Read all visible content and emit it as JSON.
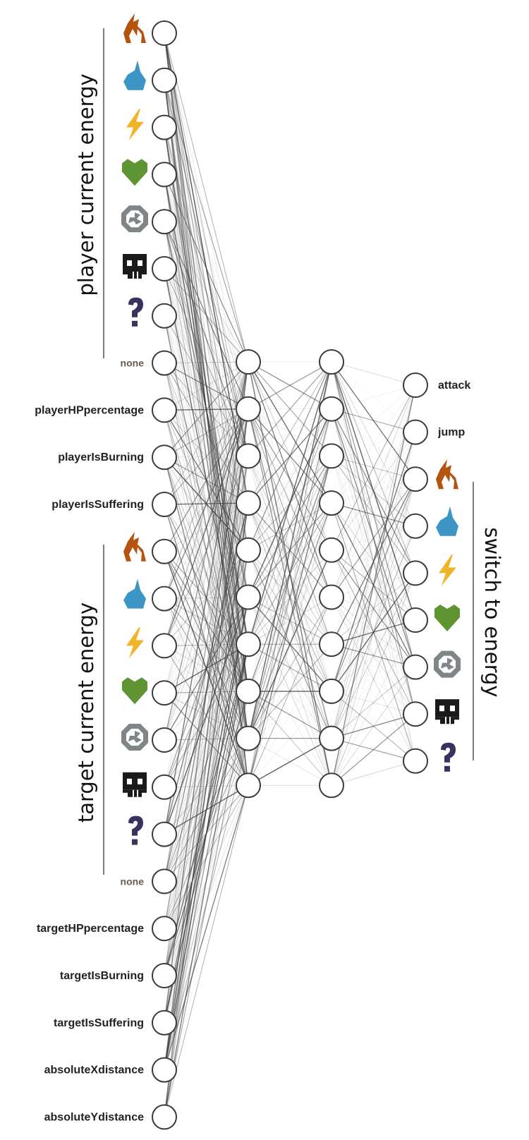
{
  "groups": {
    "player_energy": "player current energy",
    "target_energy": "target current energy",
    "switch_energy": "switch to energy"
  },
  "input_nodes": [
    {
      "kind": "icon",
      "icon": "fire-icon",
      "color": "#b5540f"
    },
    {
      "kind": "icon",
      "icon": "water-drop-icon",
      "color": "#3d95c6"
    },
    {
      "kind": "icon",
      "icon": "lightning-icon",
      "color": "#f0b429"
    },
    {
      "kind": "icon",
      "icon": "heart-icon",
      "color": "#5e9432"
    },
    {
      "kind": "icon",
      "icon": "rock-icon",
      "color": "#808588"
    },
    {
      "kind": "icon",
      "icon": "skull-icon",
      "color": "#1a1a1a"
    },
    {
      "kind": "icon",
      "icon": "question-icon",
      "color": "#3b3160"
    },
    {
      "kind": "none",
      "label": "none"
    },
    {
      "kind": "text",
      "label": "playerHPpercentage"
    },
    {
      "kind": "text",
      "label": "playerIsBurning"
    },
    {
      "kind": "text",
      "label": "playerIsSuffering"
    },
    {
      "kind": "icon",
      "icon": "fire-icon",
      "color": "#b5540f"
    },
    {
      "kind": "icon",
      "icon": "water-drop-icon",
      "color": "#3d95c6"
    },
    {
      "kind": "icon",
      "icon": "lightning-icon",
      "color": "#f0b429"
    },
    {
      "kind": "icon",
      "icon": "heart-icon",
      "color": "#5e9432"
    },
    {
      "kind": "icon",
      "icon": "rock-icon",
      "color": "#808588"
    },
    {
      "kind": "icon",
      "icon": "skull-icon",
      "color": "#1a1a1a"
    },
    {
      "kind": "icon",
      "icon": "question-icon",
      "color": "#3b3160"
    },
    {
      "kind": "none",
      "label": "none"
    },
    {
      "kind": "text",
      "label": "targetHPpercentage"
    },
    {
      "kind": "text",
      "label": "targetIsBurning"
    },
    {
      "kind": "text",
      "label": "targetIsSuffering"
    },
    {
      "kind": "text",
      "label": "absoluteXdistance"
    },
    {
      "kind": "text",
      "label": "absoluteYdistance"
    }
  ],
  "hidden_layers": [
    10,
    10
  ],
  "output_nodes": [
    {
      "kind": "text",
      "label": "attack"
    },
    {
      "kind": "text",
      "label": "jump"
    },
    {
      "kind": "icon",
      "icon": "fire-icon",
      "color": "#b5540f"
    },
    {
      "kind": "icon",
      "icon": "water-drop-icon",
      "color": "#3d95c6"
    },
    {
      "kind": "icon",
      "icon": "lightning-icon",
      "color": "#f0b429"
    },
    {
      "kind": "icon",
      "icon": "heart-icon",
      "color": "#5e9432"
    },
    {
      "kind": "icon",
      "icon": "rock-icon",
      "color": "#808588"
    },
    {
      "kind": "icon",
      "icon": "skull-icon",
      "color": "#1a1a1a"
    },
    {
      "kind": "icon",
      "icon": "question-icon",
      "color": "#3b3160"
    }
  ]
}
